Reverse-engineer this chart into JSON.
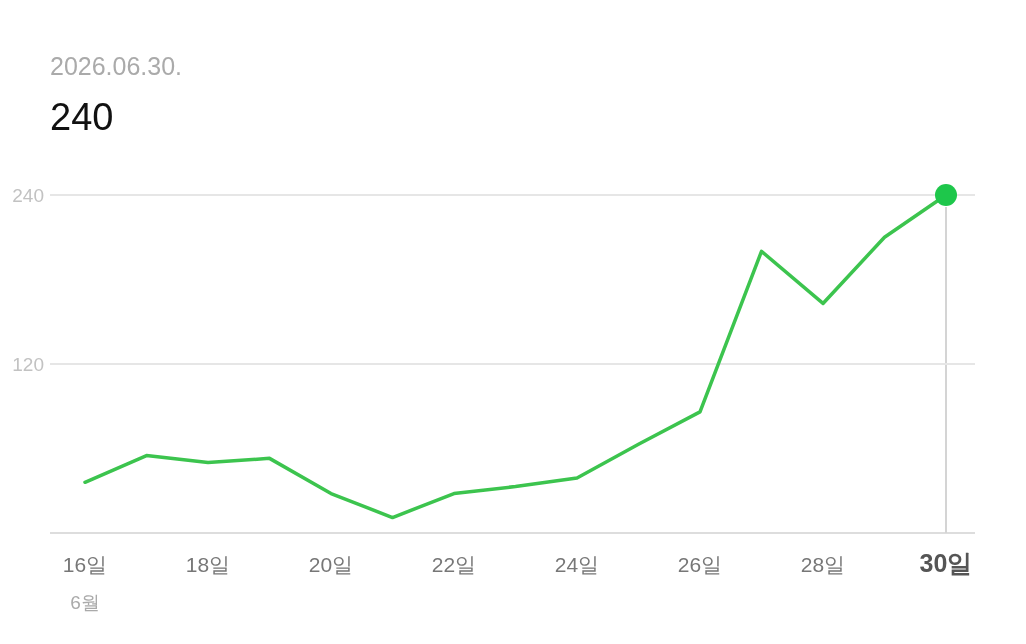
{
  "chart_data": {
    "type": "line",
    "subtitle": "2026.06.30.",
    "title": "240",
    "categories": [
      "16일",
      null,
      "18일",
      null,
      "20일",
      null,
      "22일",
      null,
      "24일",
      null,
      "26일",
      null,
      "28일",
      null,
      "30일"
    ],
    "xlabel": "6월",
    "series": [
      {
        "color": "#3cc44e",
        "values": [
          36,
          55,
          50,
          53,
          28,
          11,
          28,
          33,
          39,
          63,
          86,
          200,
          163,
          210,
          240
        ]
      },
      {
        "type": "scatter",
        "color": "#1ec74b",
        "x": [
          "30일"
        ],
        "values": [
          240
        ],
        "marker": "circle"
      }
    ],
    "ylim": [
      0,
      240
    ],
    "yticks": [
      120,
      240
    ],
    "ref_lines": [
      {
        "axis": "x",
        "value": "30일",
        "color": "#d4d4d4"
      },
      {
        "axis": "y",
        "value": 120,
        "color": "#e6e6e6"
      },
      {
        "axis": "y",
        "value": 240,
        "color": "#e6e6e6"
      }
    ]
  }
}
